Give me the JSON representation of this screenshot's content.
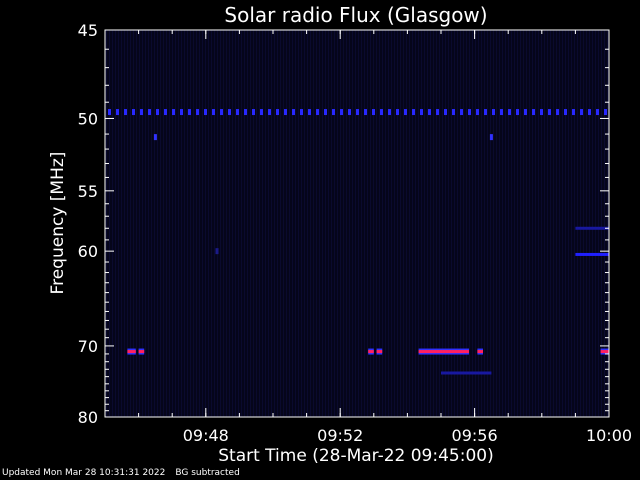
{
  "chart_data": {
    "type": "heatmap",
    "title": "Solar radio Flux (Glasgow)",
    "ylabel": "Frequency [MHz]",
    "xlabel": "Start Time (28-Mar-22 09:45:00)",
    "y_ticks": [
      45,
      50,
      55,
      60,
      70,
      80
    ],
    "y_range": [
      45,
      80
    ],
    "y_scale": "reciprocal",
    "x_ticks": [
      "09:48",
      "09:52",
      "09:56",
      "10:00"
    ],
    "x_range": [
      "09:45:00",
      "10:00:00"
    ],
    "colors": {
      "background": "#000000",
      "heat_low": "#0a0a3c",
      "heat_mid": "#2020ff",
      "heat_high": "#ff2060"
    },
    "features": [
      {
        "type": "dotted_band",
        "freq_mhz": 49.6,
        "intensity": "medium",
        "color": "#2828ff"
      },
      {
        "type": "dot",
        "time": "09:46:30",
        "freq_mhz": 51.2,
        "color": "#3030ff"
      },
      {
        "type": "dot",
        "time": "09:56:30",
        "freq_mhz": 51.2,
        "color": "#3030ff"
      },
      {
        "type": "dot",
        "time": "09:48:20",
        "freq_mhz": 60.0,
        "color": "#1a1a88"
      },
      {
        "type": "segment",
        "freq_mhz": 70.7,
        "t_start": "09:45:40",
        "t_end": "09:45:55",
        "intensity": "high"
      },
      {
        "type": "segment",
        "freq_mhz": 70.7,
        "t_start": "09:46:00",
        "t_end": "09:46:10",
        "intensity": "high"
      },
      {
        "type": "segment",
        "freq_mhz": 70.7,
        "t_start": "09:52:50",
        "t_end": "09:53:00",
        "intensity": "high"
      },
      {
        "type": "segment",
        "freq_mhz": 70.7,
        "t_start": "09:53:05",
        "t_end": "09:53:15",
        "intensity": "high"
      },
      {
        "type": "segment",
        "freq_mhz": 70.7,
        "t_start": "09:54:20",
        "t_end": "09:55:50",
        "intensity": "high"
      },
      {
        "type": "segment",
        "freq_mhz": 70.7,
        "t_start": "09:56:05",
        "t_end": "09:56:15",
        "intensity": "high"
      },
      {
        "type": "segment",
        "freq_mhz": 70.7,
        "t_start": "09:59:45",
        "t_end": "10:00:00",
        "intensity": "high"
      },
      {
        "type": "segment",
        "freq_mhz": 60.3,
        "t_start": "09:59:00",
        "t_end": "10:00:00",
        "intensity": "medium"
      },
      {
        "type": "segment",
        "freq_mhz": 58.0,
        "t_start": "09:59:00",
        "t_end": "10:00:00",
        "intensity": "low"
      },
      {
        "type": "segment",
        "freq_mhz": 73.5,
        "t_start": "09:55:00",
        "t_end": "09:56:30",
        "intensity": "low"
      }
    ]
  },
  "footer": {
    "updated": "Updated Mon Mar 28 10:31:31 2022",
    "note": "BG subtracted"
  }
}
